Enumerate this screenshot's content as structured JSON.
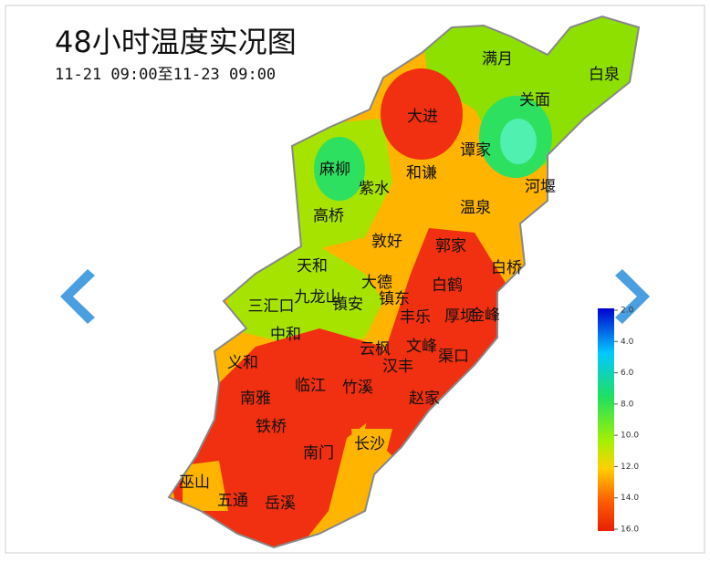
{
  "header": {
    "title": "48小时温度实况图",
    "subtitle": "11-21 09:00至11-23 09:00"
  },
  "places": [
    "满月",
    "白泉",
    "大进",
    "关面",
    "谭家",
    "麻柳",
    "和谦",
    "紫水",
    "河堰",
    "温泉",
    "高桥",
    "敦好",
    "郭家",
    "白桥",
    "天和",
    "大德",
    "白鹤",
    "三汇口",
    "九龙山",
    "镇安",
    "镇东",
    "丰乐",
    "厚坝",
    "金峰",
    "中和",
    "云枫",
    "文峰",
    "义和",
    "汉丰",
    "渠口",
    "临江",
    "竹溪",
    "南雅",
    "赵家",
    "铁桥",
    "长沙",
    "南门",
    "巫山",
    "五通",
    "岳溪"
  ],
  "legend": {
    "ticks": [
      {
        "value": 2,
        "label": "2.0"
      },
      {
        "value": 4,
        "label": "4.0"
      },
      {
        "value": 6,
        "label": "6.0"
      },
      {
        "value": 8,
        "label": "8.0"
      },
      {
        "value": 10,
        "label": "10.0"
      },
      {
        "value": 12,
        "label": "12.0"
      },
      {
        "value": 14,
        "label": "14.0"
      },
      {
        "value": 16,
        "label": "16.0"
      }
    ],
    "range": [
      2,
      16
    ]
  }
}
